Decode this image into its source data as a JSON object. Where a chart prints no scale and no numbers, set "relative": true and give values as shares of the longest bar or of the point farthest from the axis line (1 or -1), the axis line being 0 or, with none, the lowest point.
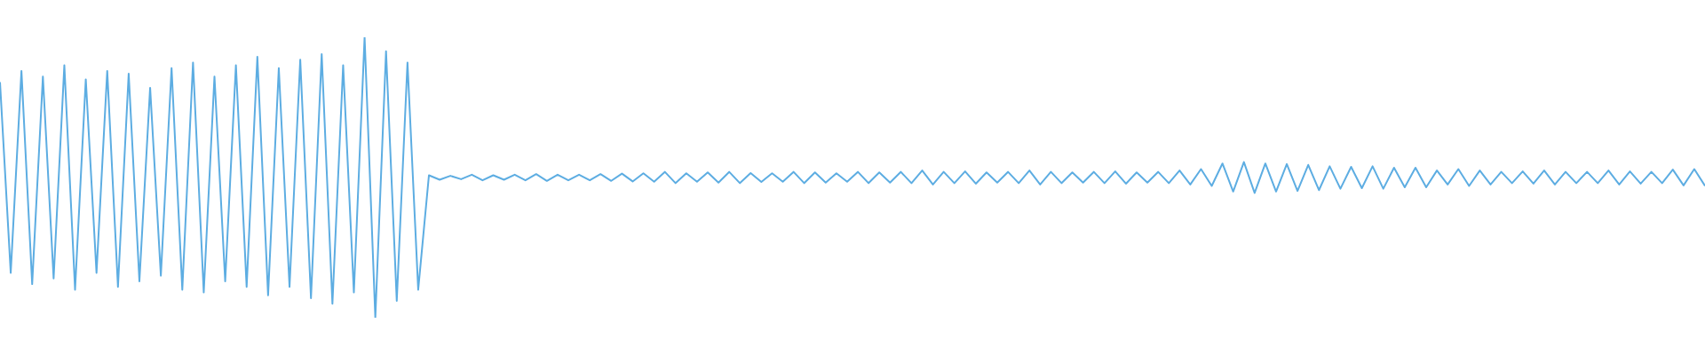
{
  "chart_data": {
    "type": "line",
    "relative": true,
    "color": "#5dade2",
    "categories": [
      null,
      null,
      null,
      null,
      null,
      null,
      null,
      null,
      null,
      null,
      null,
      null,
      null,
      null,
      null,
      null,
      null,
      null,
      null,
      null,
      null,
      null,
      null,
      null,
      null,
      null,
      null,
      null,
      null,
      null,
      null,
      null,
      null,
      null,
      null,
      null,
      null,
      null,
      null,
      null,
      null,
      null,
      null,
      null,
      null,
      null,
      null,
      null,
      null,
      null,
      null,
      null,
      null,
      null,
      null,
      null,
      null,
      null,
      null,
      null,
      null,
      null,
      null,
      null,
      null,
      null,
      null,
      null,
      null,
      null,
      null,
      null,
      null,
      null,
      null,
      null,
      null,
      null,
      null,
      null,
      null,
      null,
      null,
      null,
      null,
      null,
      null,
      null,
      null,
      null,
      null,
      null,
      null,
      null,
      null,
      null,
      null,
      null,
      null,
      null,
      null,
      null,
      null,
      null,
      null,
      null,
      null,
      null,
      null,
      null,
      null,
      null,
      null,
      null,
      null,
      null,
      null,
      null,
      null,
      null,
      null,
      null,
      null,
      null,
      null,
      null,
      null,
      null,
      null,
      null,
      null,
      null,
      null,
      null,
      null,
      null,
      null,
      null,
      null,
      null,
      null,
      null,
      null,
      null,
      null,
      null,
      null,
      null,
      null,
      null,
      null,
      null,
      null,
      null,
      null,
      null,
      null,
      null,
      null,
      null
    ],
    "values": [
      0.84,
      0.16,
      0.88,
      0.12,
      0.86,
      0.14,
      0.9,
      0.1,
      0.85,
      0.16,
      0.88,
      0.11,
      0.87,
      0.13,
      0.82,
      0.15,
      0.89,
      0.1,
      0.91,
      0.09,
      0.86,
      0.13,
      0.9,
      0.11,
      0.93,
      0.08,
      0.89,
      0.11,
      0.92,
      0.07,
      0.94,
      0.05,
      0.9,
      0.09,
      1,
      0,
      0.95,
      0.06,
      0.91,
      0.1,
      0.508,
      0.492,
      0.506,
      0.494,
      0.51,
      0.49,
      0.508,
      0.492,
      0.51,
      0.49,
      0.512,
      0.488,
      0.51,
      0.49,
      0.51,
      0.49,
      0.512,
      0.488,
      0.514,
      0.486,
      0.515,
      0.485,
      0.52,
      0.48,
      0.515,
      0.485,
      0.518,
      0.482,
      0.52,
      0.48,
      0.516,
      0.484,
      0.515,
      0.485,
      0.52,
      0.48,
      0.518,
      0.482,
      0.515,
      0.485,
      0.52,
      0.48,
      0.518,
      0.482,
      0.52,
      0.48,
      0.525,
      0.475,
      0.52,
      0.48,
      0.522,
      0.478,
      0.518,
      0.482,
      0.52,
      0.48,
      0.525,
      0.475,
      0.52,
      0.48,
      0.518,
      0.482,
      0.52,
      0.48,
      0.522,
      0.478,
      0.518,
      0.482,
      0.52,
      0.48,
      0.525,
      0.475,
      0.53,
      0.47,
      0.55,
      0.45,
      0.555,
      0.445,
      0.55,
      0.45,
      0.548,
      0.452,
      0.545,
      0.455,
      0.54,
      0.46,
      0.538,
      0.462,
      0.54,
      0.46,
      0.535,
      0.465,
      0.535,
      0.465,
      0.525,
      0.475,
      0.53,
      0.47,
      0.525,
      0.475,
      0.52,
      0.48,
      0.522,
      0.478,
      0.525,
      0.475,
      0.52,
      0.48,
      0.52,
      0.48,
      0.525,
      0.475,
      0.522,
      0.478,
      0.52,
      0.48,
      0.528,
      0.472,
      0.53,
      0.47
    ]
  }
}
